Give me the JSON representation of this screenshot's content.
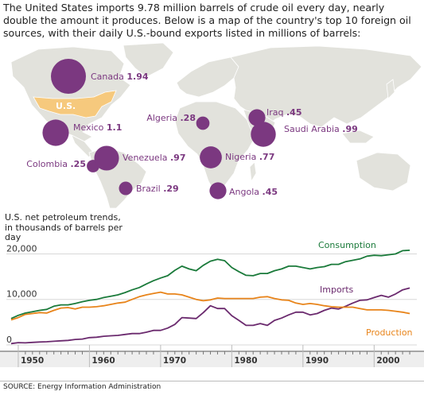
{
  "intro_text": "The United States imports 9.78 million barrels of crude oil every day, nearly double the amount it produces. Below is a map of the country's top 10 foreign oil sources, with their daily U.S.-bound exports listed in millions of barrels:",
  "colors": {
    "bubble": "#7b3880",
    "us_highlight": "#f6c97d",
    "land": "#e2e2dc",
    "consumption": "#1a7a3a",
    "imports": "#6b2a6e",
    "production": "#e8841a",
    "grid": "#d8d8d8"
  },
  "map": {
    "us_label": "U.S.",
    "sources": [
      {
        "country": "Canada",
        "value": "1.94",
        "amount": 1.94
      },
      {
        "country": "Mexico",
        "value": "1.1",
        "amount": 1.1
      },
      {
        "country": "Colombia",
        "value": ".25",
        "amount": 0.25
      },
      {
        "country": "Venezuela",
        "value": ".97",
        "amount": 0.97
      },
      {
        "country": "Brazil",
        "value": ".29",
        "amount": 0.29
      },
      {
        "country": "Algeria",
        "value": ".28",
        "amount": 0.28
      },
      {
        "country": "Nigeria",
        "value": ".77",
        "amount": 0.77
      },
      {
        "country": "Angola",
        "value": ".45",
        "amount": 0.45
      },
      {
        "country": "Iraq",
        "value": ".45",
        "amount": 0.45
      },
      {
        "country": "Saudi Arabia",
        "value": ".99",
        "amount": 0.99
      }
    ]
  },
  "chart_data": {
    "type": "line",
    "ylabel": "U.S. net petroleum trends, in thousands of barrels per day",
    "ylim": [
      0,
      22000
    ],
    "xlim": [
      1949,
      2006
    ],
    "y_ticks": [
      {
        "value": 0,
        "label": "0"
      },
      {
        "value": 10000,
        "label": "10,000"
      },
      {
        "value": 20000,
        "label": "20,000"
      }
    ],
    "x_ticks": [
      {
        "value": 1950,
        "label": "1950"
      },
      {
        "value": 1960,
        "label": "1960"
      },
      {
        "value": 1970,
        "label": "1970"
      },
      {
        "value": 1980,
        "label": "1980"
      },
      {
        "value": 1990,
        "label": "1990"
      },
      {
        "value": 2000,
        "label": "2000"
      }
    ],
    "x": [
      1949,
      1950,
      1951,
      1952,
      1953,
      1954,
      1955,
      1956,
      1957,
      1958,
      1959,
      1960,
      1961,
      1962,
      1963,
      1964,
      1965,
      1966,
      1967,
      1968,
      1969,
      1970,
      1971,
      1972,
      1973,
      1974,
      1975,
      1976,
      1977,
      1978,
      1979,
      1980,
      1981,
      1982,
      1983,
      1984,
      1985,
      1986,
      1987,
      1988,
      1989,
      1990,
      1991,
      1992,
      1993,
      1994,
      1995,
      1996,
      1997,
      1998,
      1999,
      2000,
      2001,
      2002,
      2003,
      2004,
      2005
    ],
    "series": [
      {
        "name": "Consumption",
        "values": [
          5800,
          6500,
          7000,
          7300,
          7600,
          7800,
          8500,
          8800,
          8800,
          9100,
          9500,
          9800,
          10000,
          10400,
          10700,
          11000,
          11500,
          12100,
          12600,
          13400,
          14100,
          14700,
          15200,
          16400,
          17300,
          16700,
          16300,
          17500,
          18400,
          18800,
          18500,
          17000,
          16100,
          15300,
          15200,
          15700,
          15700,
          16300,
          16700,
          17300,
          17300,
          17000,
          16700,
          17000,
          17200,
          17700,
          17700,
          18300,
          18600,
          18900,
          19500,
          19700,
          19600,
          19800,
          20000,
          20700,
          20800
        ]
      },
      {
        "name": "Imports",
        "values": [
          300,
          500,
          450,
          550,
          650,
          700,
          800,
          900,
          1000,
          1200,
          1300,
          1600,
          1700,
          1900,
          2000,
          2100,
          2300,
          2500,
          2500,
          2800,
          3200,
          3200,
          3700,
          4500,
          6000,
          5900,
          5800,
          7100,
          8600,
          8000,
          8000,
          6400,
          5400,
          4300,
          4300,
          4700,
          4300,
          5400,
          5900,
          6600,
          7200,
          7200,
          6600,
          6900,
          7600,
          8100,
          7900,
          8500,
          9200,
          9800,
          9900,
          10400,
          10900,
          10500,
          11200,
          12100,
          12500
        ]
      },
      {
        "name": "Production",
        "values": [
          5500,
          6000,
          6700,
          6900,
          7100,
          7000,
          7600,
          8100,
          8200,
          7900,
          8300,
          8300,
          8400,
          8600,
          8900,
          9200,
          9400,
          10000,
          10600,
          11000,
          11300,
          11600,
          11200,
          11200,
          11000,
          10500,
          10000,
          9700,
          9900,
          10300,
          10200,
          10200,
          10200,
          10200,
          10200,
          10500,
          10600,
          10200,
          9900,
          9800,
          9200,
          8900,
          9100,
          8900,
          8600,
          8400,
          8300,
          8300,
          8300,
          8000,
          7700,
          7700,
          7700,
          7600,
          7400,
          7200,
          6900
        ]
      }
    ]
  },
  "source_text": "SOURCE: Energy Information Administration"
}
